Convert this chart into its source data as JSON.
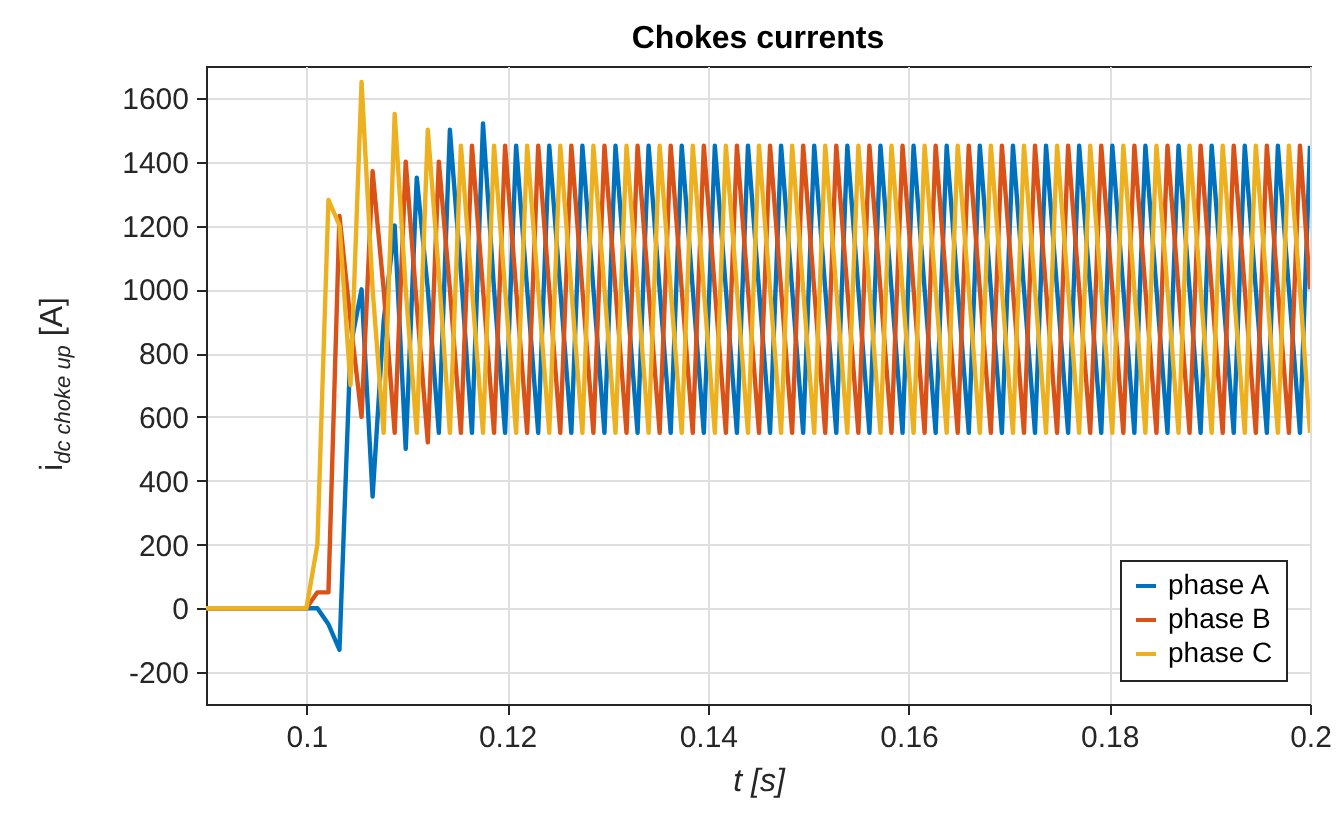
{
  "chart_data": {
    "type": "line",
    "title": "Chokes currents",
    "xlabel": "t [s]",
    "ylabel": "i$_{dc choke up}$ [A]",
    "x": [
      0.09,
      0.1,
      0.1011,
      0.1022,
      0.1033,
      0.1044,
      0.1055,
      0.1066,
      0.1077,
      0.1088,
      0.1099,
      0.111,
      0.1121,
      0.1132,
      0.1143,
      0.1154,
      0.1165,
      0.1176,
      0.1187,
      0.1198,
      0.1209,
      0.122,
      0.1231,
      0.1242,
      0.1253,
      0.1264,
      0.1275,
      0.1286,
      0.1297,
      0.1308,
      0.1319,
      0.133,
      0.1341,
      0.1352,
      0.1363,
      0.1374,
      0.1385,
      0.1396,
      0.1407,
      0.1418,
      0.1429,
      0.144,
      0.1451,
      0.1462,
      0.1473,
      0.1484,
      0.1495,
      0.1506,
      0.1517,
      0.1528,
      0.1539,
      0.155,
      0.1561,
      0.1572,
      0.1583,
      0.1594,
      0.1605,
      0.1616,
      0.1627,
      0.1638,
      0.1649,
      0.166,
      0.1671,
      0.1682,
      0.1693,
      0.1704,
      0.1715,
      0.1726,
      0.1737,
      0.1748,
      0.1759,
      0.177,
      0.1781,
      0.1792,
      0.1803,
      0.1814,
      0.1825,
      0.1836,
      0.1847,
      0.1858,
      0.1869,
      0.188,
      0.1891,
      0.1902,
      0.1913,
      0.1924,
      0.1935,
      0.1946,
      0.1957,
      0.1968,
      0.1979,
      0.199,
      0.2
    ],
    "series": [
      {
        "name": "phase A",
        "color": "#0072bd",
        "values": [
          0,
          0,
          0,
          -50,
          -130,
          820,
          1000,
          350,
          900,
          1200,
          500,
          1350,
          1000,
          550,
          1500,
          1050,
          550,
          1520,
          1000,
          550,
          1450,
          1000,
          550,
          1450,
          1000,
          550,
          1450,
          1000,
          550,
          1450,
          1000,
          550,
          1450,
          1000,
          550,
          1450,
          1000,
          550,
          1450,
          1000,
          550,
          1450,
          1000,
          550,
          1450,
          1000,
          550,
          1450,
          1000,
          550,
          1450,
          1000,
          550,
          1450,
          1000,
          550,
          1450,
          1000,
          550,
          1450,
          1000,
          550,
          1450,
          1000,
          550,
          1450,
          1000,
          550,
          1450,
          1000,
          550,
          1450,
          1000,
          550,
          1450,
          1000,
          550,
          1450,
          1000,
          550,
          1450,
          1000,
          550,
          1450,
          1000,
          550,
          1450,
          1000,
          550,
          1450,
          1000,
          550,
          1450
        ]
      },
      {
        "name": "phase B",
        "color": "#d95319",
        "values": [
          0,
          0,
          50,
          50,
          1230,
          900,
          600,
          1370,
          1000,
          550,
          1400,
          950,
          520,
          1400,
          1000,
          550,
          1450,
          1000,
          550,
          1450,
          1000,
          550,
          1450,
          1000,
          550,
          1450,
          1000,
          550,
          1450,
          1000,
          550,
          1450,
          1000,
          550,
          1450,
          1000,
          550,
          1450,
          1000,
          550,
          1450,
          1000,
          550,
          1450,
          1000,
          550,
          1450,
          1000,
          550,
          1450,
          1000,
          550,
          1450,
          1000,
          550,
          1450,
          1000,
          550,
          1450,
          1000,
          550,
          1450,
          1000,
          550,
          1450,
          1000,
          550,
          1450,
          1000,
          550,
          1450,
          1000,
          550,
          1450,
          1000,
          550,
          1450,
          1000,
          550,
          1450,
          1000,
          550,
          1450,
          1000,
          550,
          1450,
          1000,
          550,
          1450,
          1000,
          550,
          1450,
          1000
        ]
      },
      {
        "name": "phase C",
        "color": "#edb120",
        "values": [
          0,
          0,
          200,
          1280,
          1200,
          700,
          1650,
          1000,
          550,
          1550,
          1000,
          550,
          1500,
          1050,
          550,
          1450,
          1000,
          550,
          1450,
          1000,
          550,
          1450,
          1000,
          550,
          1450,
          1000,
          550,
          1450,
          1000,
          550,
          1450,
          1000,
          550,
          1450,
          1000,
          550,
          1450,
          1000,
          550,
          1450,
          1000,
          550,
          1450,
          1000,
          550,
          1450,
          1000,
          550,
          1450,
          1000,
          550,
          1450,
          1000,
          550,
          1450,
          1000,
          550,
          1450,
          1000,
          550,
          1450,
          1000,
          550,
          1450,
          1000,
          550,
          1450,
          1000,
          550,
          1450,
          1000,
          550,
          1450,
          1000,
          550,
          1450,
          1000,
          550,
          1450,
          1000,
          550,
          1450,
          1000,
          550,
          1450,
          1000,
          550,
          1450,
          1000,
          550,
          1450,
          1000,
          550
        ]
      }
    ],
    "xlim": [
      0.09,
      0.2
    ],
    "xticks": [
      0.1,
      0.12,
      0.14,
      0.16,
      0.18,
      0.2
    ],
    "ylim": [
      -300,
      1700
    ],
    "yticks": [
      -200,
      0,
      200,
      400,
      600,
      800,
      1000,
      1200,
      1400,
      1600
    ],
    "grid": true,
    "legend": "bottom right"
  }
}
